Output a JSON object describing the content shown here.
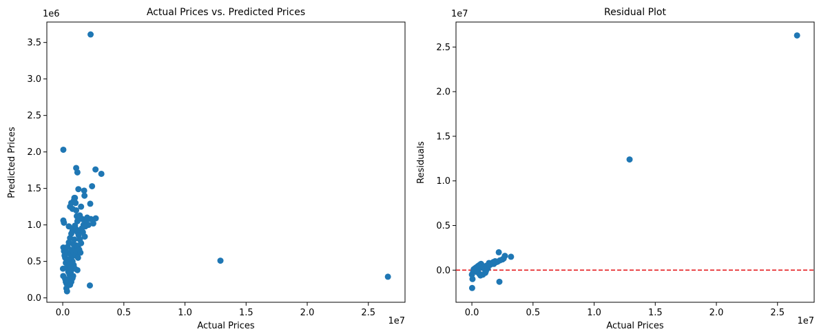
{
  "chart_data": [
    {
      "type": "scatter",
      "title": "Actual Prices vs. Predicted Prices",
      "xlabel": "Actual Prices",
      "ylabel": "Predicted Prices",
      "x_offset_label": "1e7",
      "y_offset_label": "1e6",
      "xlim": [
        -0.13,
        2.8
      ],
      "ylim": [
        -0.06,
        3.78
      ],
      "xticks": [
        0,
        0.5,
        1,
        1.5,
        2,
        2.5
      ],
      "xtick_labels": [
        "0.0",
        "0.5",
        "1.0",
        "1.5",
        "2.0",
        "2.5"
      ],
      "yticks": [
        0,
        0.5,
        1,
        1.5,
        2,
        2.5,
        3,
        3.5
      ],
      "ytick_labels": [
        "0.0",
        "0.5",
        "1.0",
        "1.5",
        "2.0",
        "2.5",
        "3.0",
        "3.5"
      ],
      "grid": false,
      "marker_color": "#1f77b4",
      "series": [
        {
          "points": [
            [
              0.228,
              3.61
            ],
            [
              0.005,
              2.03
            ],
            [
              0.11,
              1.78
            ],
            [
              0.12,
              1.72
            ],
            [
              0.268,
              1.76
            ],
            [
              0.316,
              1.7
            ],
            [
              0.24,
              1.53
            ],
            [
              0.175,
              1.47
            ],
            [
              0.178,
              1.4
            ],
            [
              0.128,
              1.49
            ],
            [
              0.225,
              1.29
            ],
            [
              0.27,
              1.09
            ],
            [
              0.18,
              0.84
            ],
            [
              0.222,
              0.17
            ],
            [
              1.29,
              0.51
            ],
            [
              2.66,
              0.29
            ],
            [
              0.005,
              1.06
            ],
            [
              0.01,
              1.03
            ],
            [
              0.005,
              0.69
            ],
            [
              0.01,
              0.64
            ],
            [
              0.002,
              0.4
            ],
            [
              0.004,
              0.3
            ],
            [
              0.02,
              0.55
            ],
            [
              0.025,
              0.22
            ],
            [
              0.03,
              0.13
            ],
            [
              0.035,
              0.09
            ],
            [
              0.04,
              0.17
            ],
            [
              0.05,
              0.25
            ],
            [
              0.05,
              0.98
            ],
            [
              0.06,
              1.25
            ],
            [
              0.07,
              1.3
            ],
            [
              0.08,
              1.22
            ],
            [
              0.09,
              1.33
            ],
            [
              0.095,
              1.37
            ],
            [
              0.1,
              1.37
            ],
            [
              0.105,
              1.3
            ],
            [
              0.11,
              1.2
            ],
            [
              0.115,
              1.12
            ],
            [
              0.12,
              1.05
            ],
            [
              0.13,
              1.1
            ],
            [
              0.14,
              1.13
            ],
            [
              0.15,
              1.25
            ],
            [
              0.16,
              1.08
            ],
            [
              0.17,
              1.0
            ],
            [
              0.155,
              0.95
            ],
            [
              0.165,
              0.9
            ],
            [
              0.12,
              0.38
            ],
            [
              0.1,
              0.4
            ],
            [
              0.09,
              0.45
            ],
            [
              0.085,
              0.3
            ],
            [
              0.075,
              0.28
            ],
            [
              0.065,
              0.35
            ],
            [
              0.055,
              0.32
            ],
            [
              0.045,
              0.36
            ],
            [
              0.035,
              0.42
            ],
            [
              0.025,
              0.48
            ],
            [
              0.015,
              0.58
            ],
            [
              0.03,
              0.63
            ],
            [
              0.04,
              0.7
            ],
            [
              0.05,
              0.76
            ],
            [
              0.06,
              0.82
            ],
            [
              0.07,
              0.88
            ],
            [
              0.08,
              0.92
            ],
            [
              0.09,
              0.96
            ],
            [
              0.1,
              0.99
            ],
            [
              0.11,
              0.94
            ],
            [
              0.12,
              0.9
            ],
            [
              0.13,
              0.86
            ],
            [
              0.14,
              0.8
            ],
            [
              0.15,
              0.75
            ],
            [
              0.06,
              0.6
            ],
            [
              0.07,
              0.55
            ],
            [
              0.08,
              0.5
            ],
            [
              0.09,
              0.62
            ],
            [
              0.1,
              0.68
            ],
            [
              0.11,
              0.72
            ],
            [
              0.045,
              0.52
            ],
            [
              0.055,
              0.46
            ],
            [
              0.065,
              0.42
            ],
            [
              0.075,
              0.66
            ],
            [
              0.085,
              0.74
            ],
            [
              0.095,
              0.8
            ],
            [
              0.02,
              0.26
            ],
            [
              0.03,
              0.2
            ],
            [
              0.04,
              0.24
            ],
            [
              0.06,
              0.18
            ],
            [
              0.07,
              0.22
            ],
            [
              0.08,
              0.27
            ],
            [
              0.105,
              0.58
            ],
            [
              0.115,
              0.64
            ],
            [
              0.125,
              0.7
            ],
            [
              0.135,
              0.66
            ],
            [
              0.145,
              0.62
            ],
            [
              0.125,
              0.55
            ],
            [
              0.19,
              1.05
            ],
            [
              0.2,
              1.1
            ],
            [
              0.21,
              1.0
            ],
            [
              0.23,
              1.08
            ],
            [
              0.25,
              1.02
            ],
            [
              0.185,
              0.98
            ]
          ]
        }
      ]
    },
    {
      "type": "scatter",
      "title": "Residual Plot",
      "xlabel": "Actual Prices",
      "ylabel": "Residuals",
      "x_offset_label": "1e7",
      "y_offset_label": "1e7",
      "xlim": [
        -0.13,
        2.8
      ],
      "ylim": [
        -0.36,
        2.78
      ],
      "xticks": [
        0,
        0.5,
        1,
        1.5,
        2,
        2.5
      ],
      "xtick_labels": [
        "0.0",
        "0.5",
        "1.0",
        "1.5",
        "2.0",
        "2.5"
      ],
      "yticks": [
        0,
        0.5,
        1,
        1.5,
        2,
        2.5
      ],
      "ytick_labels": [
        "0.0",
        "0.5",
        "1.0",
        "1.5",
        "2.0",
        "2.5"
      ],
      "grid": false,
      "marker_color": "#1f77b4",
      "reference_line": {
        "y": 0,
        "color": "#e41a1c",
        "style": "dashed"
      },
      "series": [
        {
          "points": [
            [
              2.66,
              2.63
            ],
            [
              1.29,
              1.24
            ],
            [
              0.22,
              0.2
            ],
            [
              0.27,
              0.16
            ],
            [
              0.32,
              0.15
            ],
            [
              0.25,
              0.12
            ],
            [
              0.2,
              0.09
            ],
            [
              0.18,
              0.07
            ],
            [
              0.15,
              0.06
            ],
            [
              0.12,
              0.05
            ],
            [
              0.1,
              0.04
            ],
            [
              0.08,
              0.03
            ],
            [
              0.06,
              0.02
            ],
            [
              0.05,
              0.015
            ],
            [
              0.04,
              0.01
            ],
            [
              0.03,
              0.0
            ],
            [
              0.02,
              -0.01
            ],
            [
              0.01,
              -0.02
            ],
            [
              0.0,
              -0.05
            ],
            [
              0.005,
              -0.1
            ],
            [
              0.002,
              -0.2
            ],
            [
              0.225,
              -0.13
            ],
            [
              0.14,
              0.08
            ],
            [
              0.13,
              0.02
            ],
            [
              0.11,
              -0.03
            ],
            [
              0.09,
              -0.05
            ],
            [
              0.07,
              -0.06
            ],
            [
              0.06,
              -0.04
            ],
            [
              0.04,
              -0.02
            ],
            [
              0.025,
              0.02
            ],
            [
              0.015,
              0.01
            ],
            [
              0.035,
              0.03
            ],
            [
              0.045,
              0.04
            ],
            [
              0.055,
              0.05
            ],
            [
              0.065,
              0.06
            ],
            [
              0.075,
              0.07
            ],
            [
              0.085,
              0.05
            ],
            [
              0.095,
              0.03
            ],
            [
              0.105,
              0.01
            ],
            [
              0.115,
              -0.01
            ],
            [
              0.125,
              0.04
            ],
            [
              0.135,
              0.06
            ],
            [
              0.165,
              0.08
            ],
            [
              0.175,
              0.09
            ],
            [
              0.19,
              0.1
            ],
            [
              0.21,
              0.095
            ],
            [
              0.23,
              0.11
            ],
            [
              0.26,
              0.13
            ]
          ]
        }
      ]
    }
  ]
}
